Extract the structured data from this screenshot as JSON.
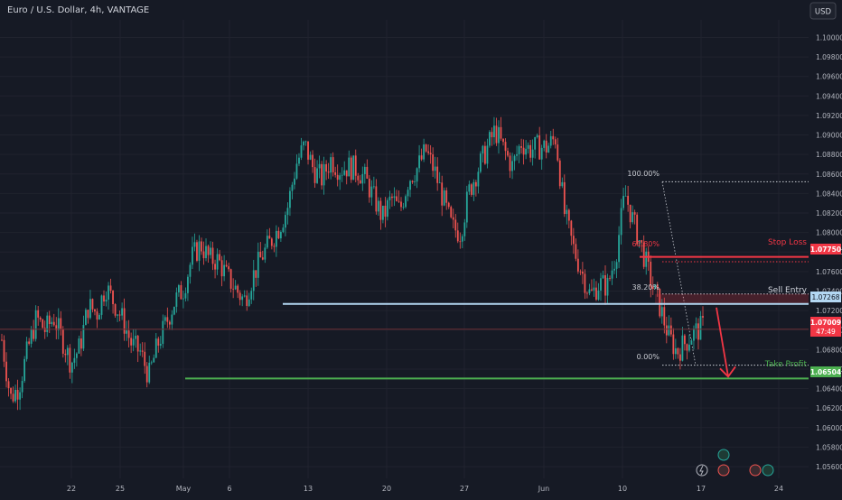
{
  "symbol_title": "Euro / U.S. Dollar, 4h, VANTAGE",
  "currency_button": "USD",
  "colors": {
    "background": "#161a25",
    "grid": "#20232e",
    "axis_text": "#b2b5be",
    "bull": "#26a69a",
    "bear": "#ef5350",
    "entry_line": "#b3d7f2",
    "stop_line": "#f23645",
    "tp_line": "#4caf50",
    "fib_line": "#c9ccd3",
    "arrow": "#f23645"
  },
  "chart_data": {
    "type": "candlestick",
    "title": "Euro / U.S. Dollar, 4h, VANTAGE",
    "x_ticks": [
      "22",
      "25",
      "May",
      "6",
      "13",
      "20",
      "27",
      "Jun",
      "10",
      "17",
      "24"
    ],
    "y_ticks": [
      "1.05600",
      "1.05800",
      "1.06000",
      "1.06200",
      "1.06400",
      "1.06600",
      "1.06800",
      "1.07000",
      "1.07200",
      "1.07400",
      "1.07600",
      "1.07800",
      "1.08000",
      "1.08200",
      "1.08400",
      "1.08600",
      "1.08800",
      "1.09000",
      "1.09200",
      "1.09400",
      "1.09600",
      "1.09800",
      "1.10000"
    ],
    "ylim": [
      1.0548,
      1.1018
    ],
    "grid": true,
    "price_path": [
      [
        1.068,
        1.07
      ],
      [
        1.062,
        1.064
      ],
      [
        1.0635,
        1.065
      ],
      [
        1.067,
        1.069
      ],
      [
        1.0705,
        1.072
      ],
      [
        1.069,
        1.071
      ],
      [
        1.07,
        1.0725
      ],
      [
        1.068,
        1.07
      ],
      [
        1.066,
        1.0672
      ],
      [
        1.0675,
        1.069
      ],
      [
        1.072,
        1.073
      ],
      [
        1.071,
        1.0725
      ],
      [
        1.074,
        1.075
      ],
      [
        1.072,
        1.0735
      ],
      [
        1.0705,
        1.0715
      ],
      [
        1.068,
        1.069
      ],
      [
        1.0675,
        1.068
      ],
      [
        1.065,
        1.0655
      ],
      [
        1.068,
        1.069
      ],
      [
        1.0705,
        1.071
      ],
      [
        1.0725,
        1.0735
      ],
      [
        1.074,
        1.0745
      ],
      [
        1.0765,
        1.0785
      ],
      [
        1.0775,
        1.08
      ],
      [
        1.0765,
        1.078
      ],
      [
        1.0768,
        1.0775
      ],
      [
        1.075,
        1.076
      ],
      [
        1.074,
        1.0745
      ],
      [
        1.0732,
        1.0728
      ],
      [
        1.075,
        1.076
      ],
      [
        1.077,
        1.078
      ],
      [
        1.0785,
        1.0795
      ],
      [
        1.08,
        1.081
      ],
      [
        1.082,
        1.083
      ],
      [
        1.086,
        1.088
      ],
      [
        1.0895,
        1.0885
      ],
      [
        1.086,
        1.087
      ],
      [
        1.085,
        1.086
      ],
      [
        1.087,
        1.088
      ],
      [
        1.086,
        1.087
      ],
      [
        1.087,
        1.0865
      ],
      [
        1.0862,
        1.0868
      ],
      [
        1.085,
        1.086
      ],
      [
        1.083,
        1.084
      ],
      [
        1.081,
        1.082
      ],
      [
        1.083,
        1.084
      ],
      [
        1.082,
        1.0825
      ],
      [
        1.085,
        1.086
      ],
      [
        1.086,
        1.0872
      ],
      [
        1.089,
        1.0878
      ],
      [
        1.086,
        1.0866
      ],
      [
        1.083,
        1.0838
      ],
      [
        1.081,
        1.08
      ],
      [
        1.079,
        1.081
      ],
      [
        1.084,
        1.0845
      ],
      [
        1.086,
        1.087
      ],
      [
        1.088,
        1.089
      ],
      [
        1.09,
        1.091
      ],
      [
        1.089,
        1.088
      ],
      [
        1.086,
        1.0875
      ],
      [
        1.089,
        1.0895
      ],
      [
        1.088,
        1.089
      ],
      [
        1.088,
        1.0895
      ],
      [
        1.0885,
        1.089
      ],
      [
        1.0895,
        1.09
      ],
      [
        1.083,
        1.081
      ],
      [
        1.08,
        1.077
      ],
      [
        1.077,
        1.075
      ],
      [
        1.074,
        1.073
      ],
      [
        1.0755,
        1.074
      ],
      [
        1.075,
        1.074
      ],
      [
        1.077,
        1.079
      ],
      [
        1.083,
        1.085
      ],
      [
        1.082,
        1.08
      ],
      [
        1.079,
        1.0775
      ],
      [
        1.076,
        1.074
      ],
      [
        1.073,
        1.072
      ],
      [
        1.07,
        1.069
      ],
      [
        1.0675,
        1.068
      ],
      [
        1.0685,
        1.069
      ],
      [
        1.0695,
        1.07
      ],
      [
        1.0702,
        1.0705
      ]
    ]
  },
  "annotations": {
    "fib_100": "100.00%",
    "fib_618": "61.80%",
    "fib_382": "38.20%",
    "fib_0": "0.00%",
    "stop_loss_label": "Stop Loss",
    "sell_entry_label": "Sell Entry",
    "take_profit_label": "Take Profit"
  },
  "price_tags": {
    "stop_loss": "1.07750",
    "sell_entry": "1.07268",
    "current_price": "1.07009",
    "countdown": "47:49",
    "take_profit": "1.06504"
  },
  "levels": {
    "fib_100": 1.0852,
    "stop_loss": 1.0775,
    "fib_618": 1.077,
    "fib_382": 1.0737,
    "sell_entry": 1.07268,
    "current": 1.07009,
    "fib_0": 1.0664,
    "take_profit": 1.06504
  }
}
